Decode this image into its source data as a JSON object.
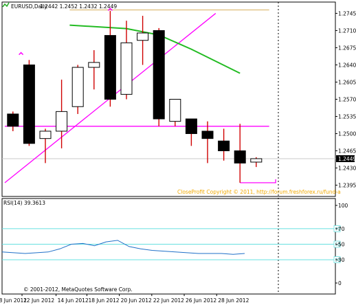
{
  "chart_data": [
    {
      "type": "candlestick",
      "title": "EURUSD,Daily",
      "header_values": "1.2442 1.2452 1.2432 1.2449",
      "ylim": [
        1.2372,
        1.2768
      ],
      "y_ticks": [
        "1.2745",
        "1.2710",
        "1.2675",
        "1.2640",
        "1.2605",
        "1.2570",
        "1.2535",
        "1.2500",
        "1.2465",
        "1.2430",
        "1.2395"
      ],
      "current_price": "1.2449",
      "x_ticks": [
        "8 Jun 2012",
        "12 Jun 2012",
        "14 Jun 2012",
        "18 Jun 2012",
        "20 Jun 2012",
        "22 Jun 2012",
        "26 Jun 2012",
        "28 Jun 2012"
      ],
      "colors": {
        "bull_body": "#ffffff",
        "bear_body": "#000000",
        "wick": "#d00000",
        "trend_line": "#ff00ff",
        "moving_average": "#22bb22",
        "resistance": "#e0c080"
      },
      "candles": [
        {
          "o": 1.254,
          "h": 1.2545,
          "l": 1.2505,
          "c": 1.2515
        },
        {
          "o": 1.264,
          "h": 1.265,
          "l": 1.2475,
          "c": 1.248
        },
        {
          "o": 1.249,
          "h": 1.251,
          "l": 1.244,
          "c": 1.2505
        },
        {
          "o": 1.2505,
          "h": 1.261,
          "l": 1.247,
          "c": 1.2545
        },
        {
          "o": 1.2555,
          "h": 1.264,
          "l": 1.254,
          "c": 1.2635
        },
        {
          "o": 1.2635,
          "h": 1.267,
          "l": 1.259,
          "c": 1.2645
        },
        {
          "o": 1.27,
          "h": 1.275,
          "l": 1.2555,
          "c": 1.257
        },
        {
          "o": 1.258,
          "h": 1.273,
          "l": 1.257,
          "c": 1.2685
        },
        {
          "o": 1.269,
          "h": 1.274,
          "l": 1.264,
          "c": 1.2705
        },
        {
          "o": 1.271,
          "h": 1.2715,
          "l": 1.2515,
          "c": 1.253
        },
        {
          "o": 1.2525,
          "h": 1.257,
          "l": 1.2515,
          "c": 1.257
        },
        {
          "o": 1.253,
          "h": 1.253,
          "l": 1.2475,
          "c": 1.25
        },
        {
          "o": 1.2505,
          "h": 1.2525,
          "l": 1.244,
          "c": 1.249
        },
        {
          "o": 1.2485,
          "h": 1.251,
          "l": 1.2445,
          "c": 1.2465
        },
        {
          "o": 1.2465,
          "h": 1.252,
          "l": 1.24,
          "c": 1.244
        },
        {
          "o": 1.2442,
          "h": 1.2452,
          "l": 1.2432,
          "c": 1.2449
        }
      ],
      "trend_line": [
        {
          "i": -0.5,
          "y": 1.24
        },
        {
          "i": 12.5,
          "y": 1.2745
        }
      ],
      "moving_average": [
        {
          "i": 3.5,
          "y": 1.2721
        },
        {
          "i": 7,
          "y": 1.2714
        },
        {
          "i": 9,
          "y": 1.2701
        },
        {
          "i": 11,
          "y": 1.2672
        },
        {
          "i": 14,
          "y": 1.2623
        }
      ],
      "horizontal_support": {
        "y": 1.2515,
        "from_i": -0.5,
        "to_i": 15.8
      },
      "resistance_top": {
        "y": 1.2752,
        "from_i": 3.5,
        "to_i": 15.8
      },
      "step_low": {
        "y": 1.24,
        "from_i": 14,
        "to_i": 16.2
      },
      "arrow_marks": [
        {
          "i": 0.5,
          "y": 1.2665
        },
        {
          "i": 6,
          "y": 1.2755
        }
      ],
      "watermark": "CloseProfit Copyright © 2011, http://forum.freshforex.ru/fund-a"
    },
    {
      "type": "line",
      "title": "RSI(14) 39.3613",
      "ylim": [
        0,
        100
      ],
      "y_ticks": [
        "100",
        "70",
        "50",
        "30",
        "0"
      ],
      "levels": [
        70,
        50,
        30
      ],
      "level_labels": [
        "70",
        "50",
        "30"
      ],
      "colors": {
        "line": "#1e6fc8",
        "level": "#66e0e0"
      },
      "values": [
        40,
        39,
        38,
        39,
        40,
        44,
        50,
        51,
        48,
        53,
        55,
        47,
        44,
        42,
        41,
        40,
        39,
        38,
        38,
        38,
        37,
        38
      ]
    }
  ],
  "footer": {
    "copyright": "© 2001-2012, MetaQuotes Software Corp."
  }
}
